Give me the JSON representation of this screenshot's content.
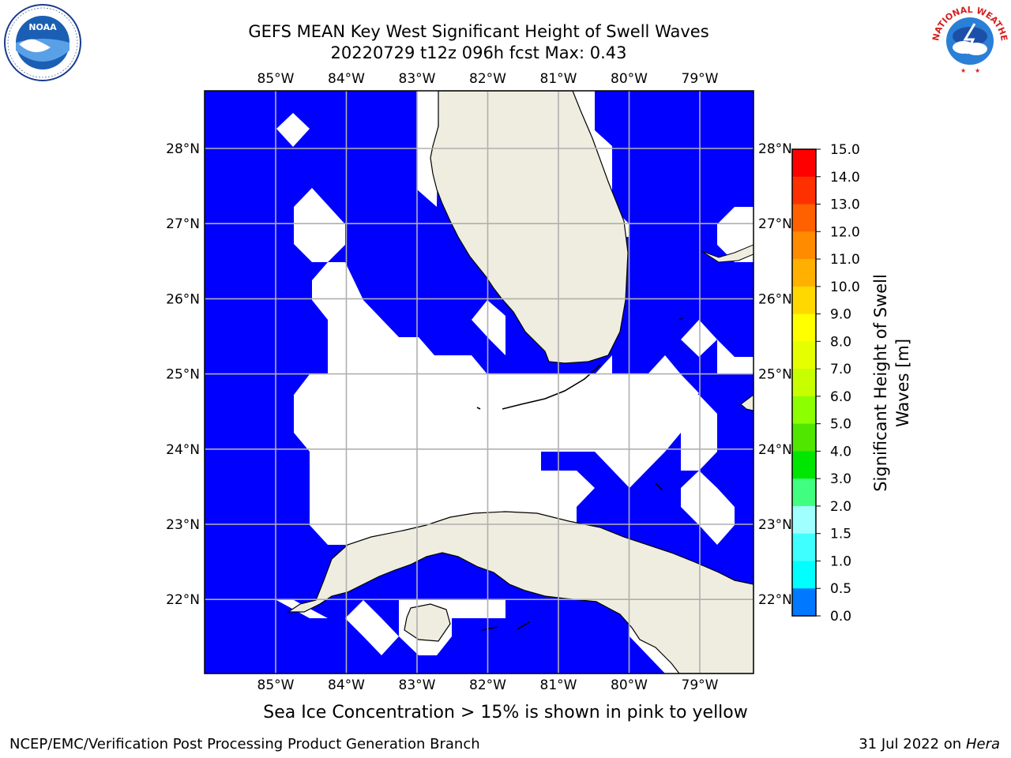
{
  "header": {
    "title_line1": "GEFS MEAN Key West Significant Height of Swell Waves",
    "title_line2": "20220729 t12z 096h fcst   Max: 0.43"
  },
  "logos": {
    "left": "noaa-logo",
    "right": "nws-logo",
    "left_ring_text": "NATIONAL OCEANIC AND ATMOSPHERIC ADMINISTRATION · U.S. DEPARTMENT OF COMMERCE",
    "left_center_text": "NOAA",
    "right_ring_text": "NATIONAL WEATHER SERVICE"
  },
  "map": {
    "longitude_labels": [
      "85°W",
      "84°W",
      "83°W",
      "82°W",
      "81°W",
      "80°W",
      "79°W"
    ],
    "latitude_labels": [
      "28°N",
      "27°N",
      "26°N",
      "25°N",
      "24°N",
      "23°N",
      "22°N"
    ],
    "colors": {
      "ocean_low": "#0000ff",
      "land": "#eeeddf",
      "grid": "#b0b0b0",
      "masked": "#ffffff"
    }
  },
  "colorbar": {
    "label": "Significant Height of Swell Waves [m]",
    "ticks": [
      "15.0",
      "14.0",
      "13.0",
      "12.0",
      "11.0",
      "10.0",
      "9.0",
      "8.0",
      "7.0",
      "6.0",
      "5.0",
      "4.0",
      "3.0",
      "2.0",
      "1.5",
      "1.0",
      "0.5",
      "0.0"
    ],
    "colors_top_to_bottom": [
      "#ff0000",
      "#ff3000",
      "#ff6000",
      "#ff8c00",
      "#ffb000",
      "#ffd800",
      "#ffff00",
      "#e6ff00",
      "#c8ff00",
      "#8cff00",
      "#50e600",
      "#00e600",
      "#40ff80",
      "#a0ffff",
      "#40ffff",
      "#00ffff",
      "#0078ff",
      "#0000ff"
    ]
  },
  "chart_data": {
    "type": "heatmap",
    "title": "GEFS MEAN Key West Significant Height of Swell Waves",
    "subtitle": "20220729 t12z 096h fcst   Max: 0.43",
    "xlabel": "",
    "ylabel": "",
    "x_ticks": [
      "85°W",
      "84°W",
      "83°W",
      "82°W",
      "81°W",
      "80°W",
      "79°W"
    ],
    "y_ticks": [
      "28°N",
      "27°N",
      "26°N",
      "25°N",
      "24°N",
      "23°N",
      "22°N"
    ],
    "colorbar_label": "Significant Height of Swell Waves [m]",
    "colorbar_levels": [
      0.0,
      0.5,
      1.0,
      1.5,
      2.0,
      3.0,
      4.0,
      5.0,
      6.0,
      7.0,
      8.0,
      9.0,
      10.0,
      11.0,
      12.0,
      13.0,
      14.0,
      15.0
    ],
    "max_value": 0.43,
    "grid": true
  },
  "footer": {
    "note": "Sea Ice Concentration > 15% is shown in pink to yellow",
    "left": "NCEP/EMC/Verification Post Processing Product Generation Branch",
    "right_date": "31 Jul 2022 on ",
    "right_host": "Hera"
  }
}
